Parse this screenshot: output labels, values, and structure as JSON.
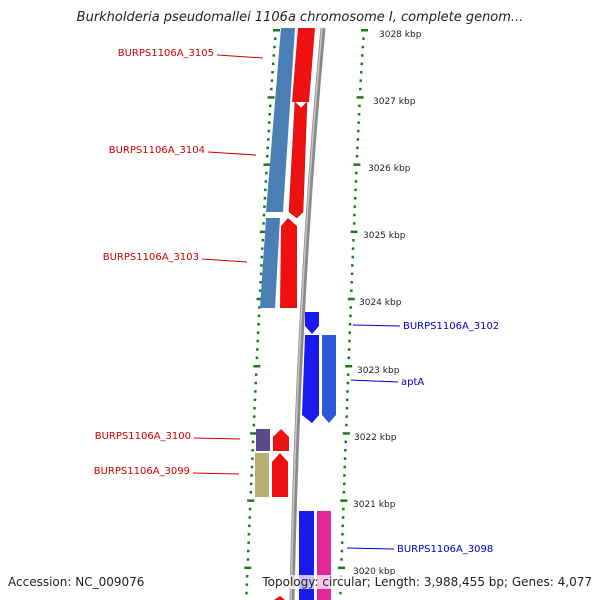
{
  "title": "Burkholderia pseudomallei 1106a chromosome I, complete genom...",
  "footer": {
    "accession": "Accession: NC_009076",
    "summary": "Topology: circular; Length: 3,988,455 bp; Genes: 4,077"
  },
  "colors": {
    "forward_label": "#cc0000",
    "reverse_label": "#0000cc",
    "backbone": "#888888",
    "ticks": "#1a7a1a",
    "red_cds": "#ee1111",
    "steel_blue_cds": "#4a7fb5",
    "blue_cds": "#1a1aee",
    "light_blue_cds": "#2a5ad8",
    "purple_cds": "#5a4a8a",
    "olive_cds": "#b8b070",
    "pink_cds": "#e0289a"
  },
  "scale_labels": [
    "3028 kbp",
    "3027 kbp",
    "3026 kbp",
    "3025 kbp",
    "3024 kbp",
    "3023 kbp",
    "3022 kbp",
    "3021 kbp",
    "3020 kbp"
  ],
  "gene_labels": [
    {
      "text": "BURPS1106A_3105",
      "side": "left"
    },
    {
      "text": "BURPS1106A_3104",
      "side": "left"
    },
    {
      "text": "BURPS1106A_3103",
      "side": "left"
    },
    {
      "text": "BURPS1106A_3100",
      "side": "left"
    },
    {
      "text": "BURPS1106A_3099",
      "side": "left"
    },
    {
      "text": "BURPS1106A_3102",
      "side": "right"
    },
    {
      "text": "aptA",
      "side": "right"
    },
    {
      "text": "BURPS1106A_3098",
      "side": "right"
    }
  ]
}
